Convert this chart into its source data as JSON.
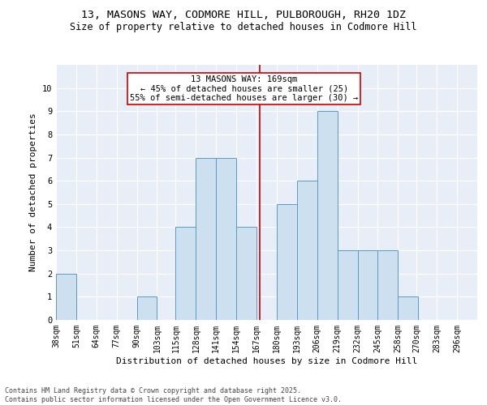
{
  "title_line1": "13, MASONS WAY, CODMORE HILL, PULBOROUGH, RH20 1DZ",
  "title_line2": "Size of property relative to detached houses in Codmore Hill",
  "xlabel": "Distribution of detached houses by size in Codmore Hill",
  "ylabel": "Number of detached properties",
  "bin_labels": [
    "38sqm",
    "51sqm",
    "64sqm",
    "77sqm",
    "90sqm",
    "103sqm",
    "115sqm",
    "128sqm",
    "141sqm",
    "154sqm",
    "167sqm",
    "180sqm",
    "193sqm",
    "206sqm",
    "219sqm",
    "232sqm",
    "245sqm",
    "258sqm",
    "270sqm",
    "283sqm",
    "296sqm"
  ],
  "bin_edges": [
    38,
    51,
    64,
    77,
    90,
    103,
    115,
    128,
    141,
    154,
    167,
    180,
    193,
    206,
    219,
    232,
    245,
    258,
    270,
    283,
    296
  ],
  "bar_heights": [
    2,
    0,
    0,
    0,
    1,
    0,
    4,
    7,
    7,
    4,
    0,
    5,
    6,
    9,
    3,
    3,
    3,
    1,
    0,
    0,
    0
  ],
  "bar_color": "#cce0f0",
  "bar_edge_color": "#5a9ac8",
  "ref_line_x": 169,
  "ref_line_color": "#cc0000",
  "annotation_text": "13 MASONS WAY: 169sqm\n← 45% of detached houses are smaller (25)\n55% of semi-detached houses are larger (30) →",
  "annotation_box_color": "#cc0000",
  "ylim": [
    0,
    11
  ],
  "yticks": [
    0,
    1,
    2,
    3,
    4,
    5,
    6,
    7,
    8,
    9,
    10,
    11
  ],
  "background_color": "#e8eef8",
  "footer_text": "Contains HM Land Registry data © Crown copyright and database right 2025.\nContains public sector information licensed under the Open Government Licence v3.0.",
  "title_fontsize": 9.5,
  "subtitle_fontsize": 8.5,
  "axis_label_fontsize": 8,
  "tick_fontsize": 7,
  "annotation_fontsize": 7.5,
  "footer_fontsize": 6
}
